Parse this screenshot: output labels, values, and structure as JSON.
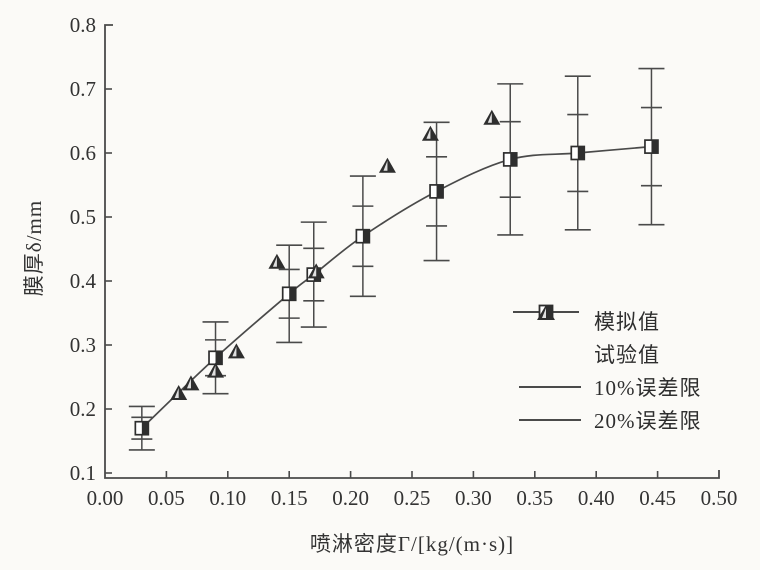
{
  "figure": {
    "paper_color": "#fbfaf7",
    "ink_color": "#2e2e2e",
    "line_color": "#4a4a4a"
  },
  "chart_data": {
    "type": "line",
    "title": "",
    "xlabel": "喷淋密度Γ/[kg/(m·s)]",
    "ylabel": "膜厚δ/mm",
    "xlim": [
      0.0,
      0.5
    ],
    "ylim": [
      0.1,
      0.8
    ],
    "xticks": [
      "0.00",
      "0.05",
      "0.10",
      "0.15",
      "0.20",
      "0.25",
      "0.30",
      "0.35",
      "0.40",
      "0.45",
      "0.50"
    ],
    "yticks": [
      "0.8",
      "0.7",
      "0.6",
      "0.5",
      "0.4",
      "0.3",
      "0.2",
      "0.1"
    ],
    "grid": false,
    "legend_position": "right-middle",
    "series": [
      {
        "name": "模拟值",
        "marker": "half-filled-square",
        "line": "smooth",
        "x": [
          0.03,
          0.09,
          0.15,
          0.17,
          0.21,
          0.27,
          0.33,
          0.385,
          0.445
        ],
        "y": [
          0.17,
          0.28,
          0.38,
          0.41,
          0.47,
          0.54,
          0.59,
          0.6,
          0.61
        ],
        "error_caps_pct": [
          10,
          20
        ]
      },
      {
        "name": "试验值",
        "marker": "filled-triangle",
        "line": "none",
        "x": [
          0.06,
          0.07,
          0.09,
          0.107,
          0.14,
          0.172,
          0.23,
          0.265,
          0.315
        ],
        "y": [
          0.225,
          0.24,
          0.26,
          0.29,
          0.43,
          0.415,
          0.58,
          0.63,
          0.655
        ]
      }
    ],
    "legend": {
      "items": [
        {
          "label": "模拟值",
          "marker": "square-on-line"
        },
        {
          "label": "试验值",
          "marker": "triangle"
        },
        {
          "label": "10%误差限",
          "marker": "line"
        },
        {
          "label": "20%误差限",
          "marker": "line"
        }
      ]
    }
  }
}
